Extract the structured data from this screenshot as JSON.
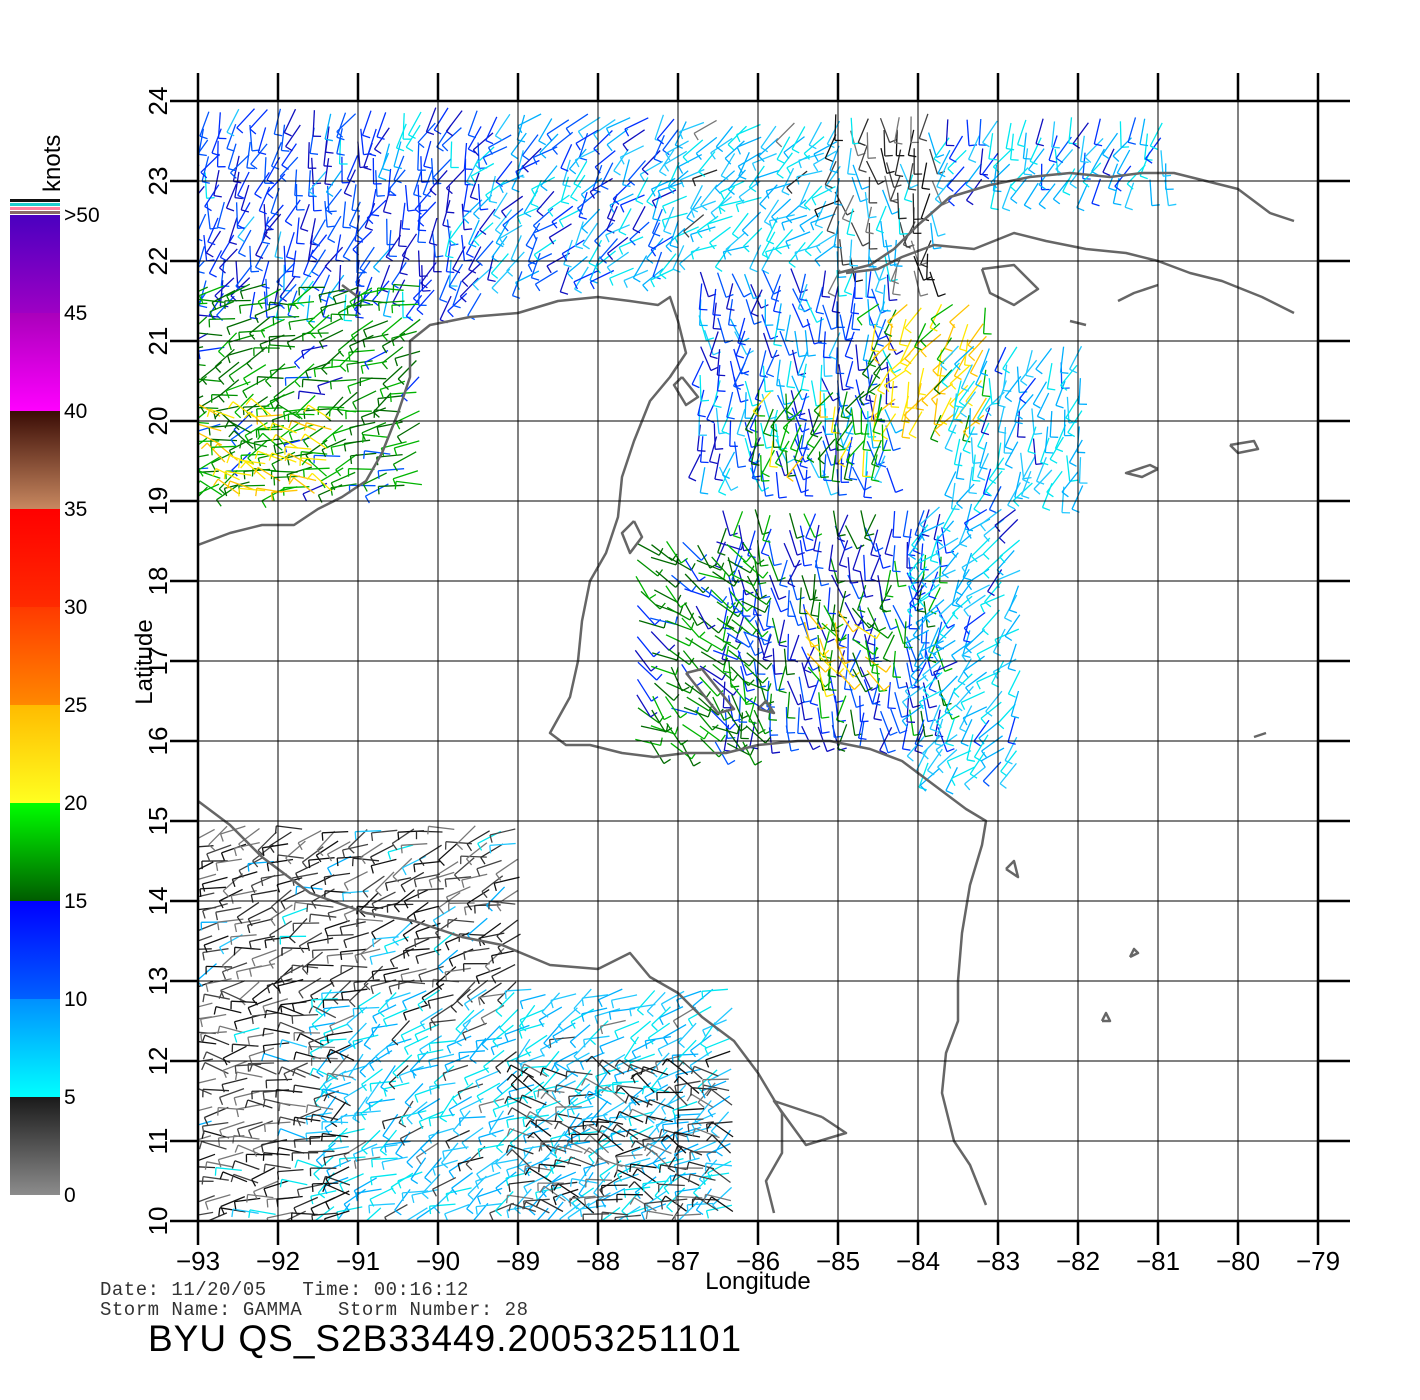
{
  "map": {
    "lon_ticks": [
      "−93",
      "−92",
      "−91",
      "−90",
      "−89",
      "−88",
      "−87",
      "−86",
      "−85",
      "−84",
      "−83",
      "−82",
      "−81",
      "−80",
      "−79"
    ],
    "lat_ticks": [
      "10",
      "11",
      "12",
      "13",
      "14",
      "15",
      "16",
      "17",
      "18",
      "19",
      "20",
      "21",
      "22",
      "23",
      "24"
    ],
    "lon_range": [
      -93,
      -79
    ],
    "lat_range": [
      10,
      24
    ],
    "xlabel": "Longitude",
    "ylabel": "Latitude",
    "grid": true,
    "coastline_color": "#666666"
  },
  "colorbar": {
    "title": "knots",
    "labels": [
      ">50",
      "45",
      "40",
      "35",
      "30",
      "25",
      "20",
      "15",
      "10",
      "5",
      "0"
    ],
    "bands": [
      {
        "from": 0,
        "to": 5,
        "colors": [
          "#8c8c8c",
          "#1a1a1a"
        ]
      },
      {
        "from": 5,
        "to": 10,
        "colors": [
          "#00ffff",
          "#0090ff"
        ]
      },
      {
        "from": 10,
        "to": 15,
        "colors": [
          "#0060ff",
          "#0000ff"
        ]
      },
      {
        "from": 15,
        "to": 20,
        "colors": [
          "#005c00",
          "#00ff00"
        ]
      },
      {
        "from": 20,
        "to": 25,
        "colors": [
          "#ffff20",
          "#ffbb00"
        ]
      },
      {
        "from": 25,
        "to": 30,
        "colors": [
          "#ff8800",
          "#ff3a00"
        ]
      },
      {
        "from": 30,
        "to": 35,
        "colors": [
          "#ff2a00",
          "#ff0000"
        ]
      },
      {
        "from": 35,
        "to": 40,
        "colors": [
          "#c88860",
          "#3a0c05"
        ]
      },
      {
        "from": 40,
        "to": 45,
        "colors": [
          "#ff00ff",
          "#aa00bb"
        ]
      },
      {
        "from": 45,
        "to": 50,
        "colors": [
          "#9e00c4",
          "#4a00c0"
        ]
      }
    ],
    "top_stripes": [
      "#111111",
      "#20d0d0",
      "#ff80a0",
      "#8a6a6a"
    ]
  },
  "meta": {
    "line1": "Date: 11/20/05   Time: 00:16:12",
    "line2": "Storm Name: GAMMA   Storm Number: 28",
    "title": "BYU QS_S2B33449.20053251101"
  },
  "wind_regions": [
    {
      "lon": [
        -92.9,
        -89.3
      ],
      "lat": [
        21.6,
        23.9
      ],
      "speed": 12,
      "dir": 250
    },
    {
      "lon": [
        -89.3,
        -86.9
      ],
      "lat": [
        21.9,
        23.9
      ],
      "speed": 10,
      "dir": 230
    },
    {
      "lon": [
        -86.9,
        -85.0
      ],
      "lat": [
        22.2,
        23.9
      ],
      "speed": 7,
      "dir": 220
    },
    {
      "lon": [
        -85.0,
        -83.8
      ],
      "lat": [
        21.9,
        23.9
      ],
      "speed": 4,
      "dir": 270
    },
    {
      "lon": [
        -83.6,
        -80.8
      ],
      "lat": [
        23.0,
        23.9
      ],
      "speed": 9,
      "dir": 250
    },
    {
      "lon": [
        -92.9,
        -90.2
      ],
      "lat": [
        19.2,
        21.8
      ],
      "speed": 17,
      "dir": 200
    },
    {
      "lon": [
        -92.7,
        -91.3
      ],
      "lat": [
        19.1,
        20.2
      ],
      "speed": 21,
      "dir": 160
    },
    {
      "lon": [
        -86.7,
        -84.3
      ],
      "lat": [
        19.4,
        21.9
      ],
      "speed": 11,
      "dir": 270
    },
    {
      "lon": [
        -84.5,
        -83.0
      ],
      "lat": [
        20.1,
        21.6
      ],
      "speed": 21,
      "dir": 240
    },
    {
      "lon": [
        -86.0,
        -84.4
      ],
      "lat": [
        19.6,
        20.4
      ],
      "speed": 18,
      "dir": 250
    },
    {
      "lon": [
        -83.5,
        -81.8
      ],
      "lat": [
        19.2,
        21.1
      ],
      "speed": 8,
      "dir": 250
    },
    {
      "lon": [
        -86.4,
        -83.6
      ],
      "lat": [
        16.2,
        19.0
      ],
      "speed": 14,
      "dir": 270
    },
    {
      "lon": [
        -87.5,
        -86.0
      ],
      "lat": [
        16.0,
        18.6
      ],
      "speed": 16,
      "dir": 320
    },
    {
      "lon": [
        -85.4,
        -84.5
      ],
      "lat": [
        16.9,
        17.7
      ],
      "speed": 21,
      "dir": 300
    },
    {
      "lon": [
        -83.9,
        -82.6
      ],
      "lat": [
        15.7,
        19.0
      ],
      "speed": 8,
      "dir": 230
    },
    {
      "lon": [
        -92.8,
        -89.0
      ],
      "lat": [
        13.0,
        14.9
      ],
      "speed": 3,
      "dir": 200
    },
    {
      "lon": [
        -91.3,
        -86.2
      ],
      "lat": [
        10.2,
        12.9
      ],
      "speed": 7,
      "dir": 210
    },
    {
      "lon": [
        -92.8,
        -91.0
      ],
      "lat": [
        10.1,
        12.8
      ],
      "speed": 3,
      "dir": 180
    },
    {
      "lon": [
        -88.8,
        -86.3
      ],
      "lat": [
        10.1,
        11.9
      ],
      "speed": 3,
      "dir": 160
    }
  ],
  "coastlines": [
    [
      [
        -93.0,
        18.45
      ],
      [
        -92.6,
        18.6
      ],
      [
        -92.2,
        18.7
      ],
      [
        -91.8,
        18.7
      ],
      [
        -91.5,
        18.9
      ],
      [
        -91.2,
        19.05
      ],
      [
        -90.9,
        19.25
      ],
      [
        -90.7,
        19.6
      ],
      [
        -90.5,
        20.1
      ],
      [
        -90.35,
        20.55
      ],
      [
        -90.35,
        21.0
      ],
      [
        -90.1,
        21.2
      ],
      [
        -89.6,
        21.3
      ],
      [
        -89.0,
        21.35
      ],
      [
        -88.5,
        21.5
      ],
      [
        -88.0,
        21.55
      ],
      [
        -87.6,
        21.5
      ],
      [
        -87.25,
        21.45
      ],
      [
        -87.1,
        21.55
      ],
      [
        -87.0,
        21.25
      ],
      [
        -86.9,
        20.85
      ],
      [
        -87.1,
        20.55
      ],
      [
        -87.35,
        20.25
      ],
      [
        -87.55,
        19.75
      ],
      [
        -87.7,
        19.3
      ],
      [
        -87.75,
        18.8
      ],
      [
        -87.9,
        18.35
      ],
      [
        -88.1,
        18.0
      ],
      [
        -88.2,
        17.5
      ],
      [
        -88.25,
        17.0
      ],
      [
        -88.35,
        16.55
      ],
      [
        -88.6,
        16.1
      ],
      [
        -88.4,
        15.95
      ],
      [
        -88.1,
        15.95
      ],
      [
        -87.7,
        15.85
      ],
      [
        -87.3,
        15.8
      ],
      [
        -86.9,
        15.85
      ],
      [
        -86.4,
        15.85
      ],
      [
        -86.0,
        15.95
      ],
      [
        -85.5,
        16.0
      ],
      [
        -85.1,
        16.0
      ],
      [
        -84.6,
        15.9
      ],
      [
        -84.2,
        15.75
      ],
      [
        -83.8,
        15.45
      ],
      [
        -83.4,
        15.15
      ],
      [
        -83.15,
        15.0
      ],
      [
        -83.2,
        14.7
      ],
      [
        -83.35,
        14.2
      ],
      [
        -83.45,
        13.6
      ],
      [
        -83.5,
        13.0
      ],
      [
        -83.5,
        12.5
      ],
      [
        -83.65,
        12.1
      ],
      [
        -83.7,
        11.6
      ],
      [
        -83.55,
        11.0
      ],
      [
        -83.35,
        10.7
      ],
      [
        -83.15,
        10.2
      ]
    ],
    [
      [
        -93.0,
        15.25
      ],
      [
        -92.6,
        14.95
      ],
      [
        -92.2,
        14.55
      ],
      [
        -91.6,
        14.1
      ],
      [
        -90.9,
        13.85
      ],
      [
        -90.3,
        13.75
      ],
      [
        -89.7,
        13.55
      ],
      [
        -89.2,
        13.45
      ],
      [
        -88.6,
        13.2
      ],
      [
        -88.0,
        13.15
      ],
      [
        -87.6,
        13.35
      ],
      [
        -87.35,
        13.05
      ],
      [
        -87.0,
        12.85
      ],
      [
        -86.7,
        12.55
      ],
      [
        -86.3,
        12.25
      ],
      [
        -86.0,
        11.85
      ],
      [
        -85.7,
        11.35
      ],
      [
        -85.7,
        10.85
      ],
      [
        -85.9,
        10.5
      ],
      [
        -85.8,
        10.1
      ]
    ],
    [
      [
        -85.0,
        21.85
      ],
      [
        -84.6,
        21.95
      ],
      [
        -84.3,
        22.15
      ],
      [
        -84.0,
        22.45
      ],
      [
        -83.6,
        22.8
      ],
      [
        -83.1,
        22.95
      ],
      [
        -82.6,
        23.05
      ],
      [
        -82.1,
        23.1
      ],
      [
        -81.6,
        23.05
      ],
      [
        -81.2,
        23.1
      ],
      [
        -80.8,
        23.1
      ],
      [
        -80.4,
        23.0
      ],
      [
        -80.0,
        22.9
      ],
      [
        -79.6,
        22.6
      ],
      [
        -79.3,
        22.5
      ]
    ],
    [
      [
        -84.9,
        21.85
      ],
      [
        -84.5,
        21.9
      ],
      [
        -84.2,
        22.05
      ],
      [
        -83.8,
        22.2
      ],
      [
        -83.3,
        22.15
      ],
      [
        -82.8,
        22.35
      ],
      [
        -82.4,
        22.25
      ],
      [
        -81.9,
        22.15
      ],
      [
        -81.4,
        22.1
      ],
      [
        -81.0,
        22.0
      ],
      [
        -80.6,
        21.85
      ],
      [
        -80.2,
        21.75
      ],
      [
        -79.7,
        21.55
      ],
      [
        -79.3,
        21.35
      ]
    ],
    [
      [
        -83.2,
        21.9
      ],
      [
        -82.8,
        21.95
      ],
      [
        -82.5,
        21.65
      ],
      [
        -82.8,
        21.45
      ],
      [
        -83.1,
        21.6
      ],
      [
        -83.2,
        21.9
      ]
    ],
    [
      [
        -91.2,
        21.7
      ],
      [
        -91.0,
        21.55
      ]
    ],
    [
      [
        -86.95,
        20.55
      ],
      [
        -86.75,
        20.3
      ],
      [
        -86.9,
        20.2
      ],
      [
        -87.05,
        20.45
      ],
      [
        -86.95,
        20.55
      ]
    ],
    [
      [
        -87.55,
        18.75
      ],
      [
        -87.45,
        18.55
      ],
      [
        -87.6,
        18.35
      ],
      [
        -87.7,
        18.6
      ],
      [
        -87.55,
        18.75
      ]
    ],
    [
      [
        -86.9,
        16.85
      ],
      [
        -86.5,
        16.35
      ],
      [
        -86.3,
        16.4
      ],
      [
        -86.7,
        16.9
      ],
      [
        -86.9,
        16.85
      ]
    ],
    [
      [
        -86.0,
        16.4
      ],
      [
        -85.8,
        16.35
      ],
      [
        -85.9,
        16.5
      ],
      [
        -86.0,
        16.4
      ]
    ],
    [
      [
        -81.0,
        19.4
      ],
      [
        -81.2,
        19.3
      ],
      [
        -81.4,
        19.35
      ],
      [
        -81.1,
        19.45
      ],
      [
        -81.0,
        19.4
      ]
    ],
    [
      [
        -80.1,
        19.7
      ],
      [
        -79.8,
        19.75
      ],
      [
        -79.75,
        19.65
      ],
      [
        -80.0,
        19.6
      ],
      [
        -80.1,
        19.7
      ]
    ],
    [
      [
        -82.9,
        14.4
      ],
      [
        -82.75,
        14.3
      ],
      [
        -82.8,
        14.5
      ],
      [
        -82.9,
        14.4
      ]
    ],
    [
      [
        -81.35,
        13.3
      ],
      [
        -81.25,
        13.35
      ],
      [
        -81.3,
        13.4
      ],
      [
        -81.35,
        13.3
      ]
    ],
    [
      [
        -81.7,
        12.5
      ],
      [
        -81.65,
        12.6
      ],
      [
        -81.6,
        12.5
      ],
      [
        -81.7,
        12.5
      ]
    ],
    [
      [
        -85.2,
        11.3
      ],
      [
        -84.9,
        11.1
      ],
      [
        -85.4,
        10.95
      ],
      [
        -85.8,
        11.5
      ],
      [
        -85.2,
        11.3
      ]
    ],
    [
      [
        -79.8,
        16.05
      ],
      [
        -79.65,
        16.1
      ]
    ],
    [
      [
        -81.0,
        21.7
      ],
      [
        -81.3,
        21.6
      ],
      [
        -81.5,
        21.5
      ]
    ],
    [
      [
        -82.1,
        21.25
      ],
      [
        -81.9,
        21.2
      ]
    ]
  ]
}
